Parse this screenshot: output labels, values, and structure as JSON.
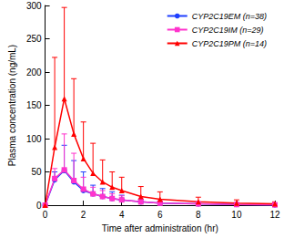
{
  "chart_data": {
    "type": "line",
    "x_label": "Time after administration (hr)",
    "y_label": "Plasma concentration (ng/mL)",
    "xlim": [
      0,
      12
    ],
    "xticks": [
      0,
      2,
      4,
      6,
      8,
      10,
      12
    ],
    "ylim": [
      0,
      300
    ],
    "yticks": [
      0,
      50,
      100,
      150,
      200,
      250,
      300
    ],
    "grid": false,
    "legend": "upper right",
    "x": [
      0,
      0.5,
      1,
      1.5,
      2,
      2.5,
      3,
      3.5,
      4,
      5,
      6,
      8,
      10,
      12
    ],
    "series": [
      {
        "name": "CYP2C19EM (n=38)",
        "color": "#1f3fff",
        "marker": "circle",
        "values": [
          0,
          38,
          52,
          35,
          22,
          17,
          13,
          10,
          8,
          5,
          3,
          2,
          1,
          0.5
        ],
        "errors": [
          0,
          12,
          38,
          32,
          28,
          13,
          12,
          10,
          7,
          4,
          3,
          2,
          1,
          1
        ]
      },
      {
        "name": "CYP2C19IM (n=29)",
        "color": "#ff33cc",
        "marker": "square",
        "values": [
          0,
          40,
          53,
          37,
          24,
          17,
          13,
          10,
          8,
          5,
          3,
          2,
          1,
          0.5
        ],
        "errors": [
          0,
          15,
          54,
          41,
          18,
          10,
          9,
          7,
          6,
          4,
          3,
          2,
          1,
          1
        ]
      },
      {
        "name": "CYP2C19PM (n=14)",
        "color": "#ff0000",
        "marker": "triangle",
        "values": [
          0,
          87,
          160,
          107,
          70,
          48,
          35,
          27,
          22,
          13,
          9,
          5,
          3,
          2
        ],
        "errors": [
          0,
          135,
          137,
          83,
          55,
          45,
          33,
          23,
          20,
          15,
          11,
          7,
          5,
          3
        ]
      }
    ]
  }
}
